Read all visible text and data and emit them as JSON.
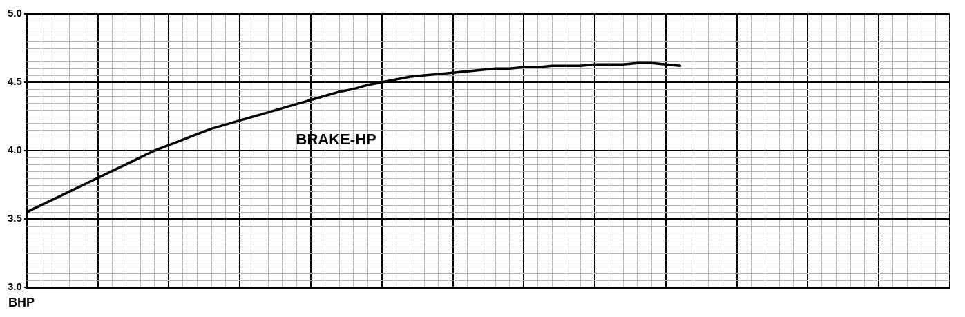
{
  "chart_data": {
    "type": "line",
    "annotations": [
      "BHP"
    ],
    "categories": [
      null,
      null,
      null,
      null,
      null,
      null,
      null,
      null,
      null,
      null,
      null,
      null,
      null,
      null,
      null,
      null,
      null,
      null,
      null,
      null,
      null,
      null,
      null,
      null,
      null,
      null,
      null,
      null,
      null,
      null,
      null,
      null,
      null,
      null,
      null,
      null,
      null,
      null,
      null,
      null,
      null,
      null,
      null,
      null,
      null,
      null,
      null,
      null,
      null,
      null,
      null,
      null,
      null,
      null,
      null,
      null,
      null,
      null,
      null,
      null,
      null,
      null,
      null,
      null,
      null,
      null
    ],
    "series": [
      {
        "name": "BRAKE-HP",
        "color": "#000000",
        "values": [
          3.55,
          3.6,
          3.65,
          3.7,
          3.75,
          3.8,
          3.85,
          3.9,
          3.95,
          4.0,
          4.04,
          4.08,
          4.12,
          4.16,
          4.19,
          4.22,
          4.25,
          4.28,
          4.31,
          4.34,
          4.37,
          4.4,
          4.43,
          4.45,
          4.48,
          4.5,
          4.52,
          4.54,
          4.55,
          4.56,
          4.57,
          4.58,
          4.59,
          4.6,
          4.6,
          4.61,
          4.61,
          4.62,
          4.62,
          4.62,
          4.63,
          4.63,
          4.63,
          4.64,
          4.64,
          4.63,
          4.62,
          null,
          null,
          null,
          null,
          null,
          null,
          null,
          null,
          null,
          null,
          null,
          null,
          null,
          null,
          null,
          null,
          null,
          null,
          null
        ]
      }
    ],
    "ylim": [
      3.0,
      5.0
    ],
    "yticks": [
      {
        "value": 3,
        "label": "3.0"
      },
      {
        "value": 3.5,
        "label": "3.5"
      },
      {
        "value": 4,
        "label": "4.0"
      },
      {
        "value": 4.5,
        "label": "4.5"
      },
      {
        "value": 5,
        "label": "5.0"
      }
    ],
    "grid": true,
    "tick_labels": "y",
    "marker": "none",
    "line_style": "solid",
    "legend": false
  }
}
